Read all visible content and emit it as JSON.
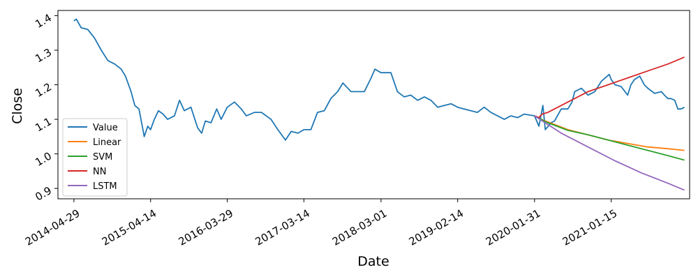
{
  "chart_data": {
    "type": "line",
    "xlabel": "Date",
    "ylabel": "Close",
    "x_ticks": [
      "2014-04-29",
      "2015-04-14",
      "2016-03-29",
      "2017-03-14",
      "2018-03-01",
      "2019-02-14",
      "2020-01-31",
      "2021-01-15"
    ],
    "y_ticks": [
      "0.9",
      "1.0",
      "1.1",
      "1.2",
      "1.3",
      "1.4"
    ],
    "xlim": [
      "2014-02-15",
      "2022-01-08"
    ],
    "ylim": [
      0.87,
      1.415
    ],
    "legend_position": "lower-left",
    "grid": false,
    "series": [
      {
        "name": "Value",
        "color": "#1f77b4",
        "points": [
          [
            "2014-04-29",
            1.385
          ],
          [
            "2014-05-10",
            1.39
          ],
          [
            "2014-06-01",
            1.365
          ],
          [
            "2014-07-01",
            1.36
          ],
          [
            "2014-08-01",
            1.335
          ],
          [
            "2014-09-01",
            1.3
          ],
          [
            "2014-10-01",
            1.27
          ],
          [
            "2014-11-01",
            1.26
          ],
          [
            "2014-12-01",
            1.245
          ],
          [
            "2014-12-20",
            1.225
          ],
          [
            "2015-01-15",
            1.18
          ],
          [
            "2015-02-01",
            1.14
          ],
          [
            "2015-02-20",
            1.13
          ],
          [
            "2015-03-10",
            1.07
          ],
          [
            "2015-03-16",
            1.05
          ],
          [
            "2015-04-01",
            1.08
          ],
          [
            "2015-04-14",
            1.07
          ],
          [
            "2015-05-01",
            1.1
          ],
          [
            "2015-05-20",
            1.125
          ],
          [
            "2015-06-10",
            1.115
          ],
          [
            "2015-07-01",
            1.1
          ],
          [
            "2015-08-01",
            1.11
          ],
          [
            "2015-08-24",
            1.155
          ],
          [
            "2015-09-15",
            1.125
          ],
          [
            "2015-10-15",
            1.135
          ],
          [
            "2015-11-15",
            1.075
          ],
          [
            "2015-12-03",
            1.06
          ],
          [
            "2015-12-20",
            1.095
          ],
          [
            "2016-01-15",
            1.09
          ],
          [
            "2016-02-10",
            1.13
          ],
          [
            "2016-03-01",
            1.1
          ],
          [
            "2016-03-29",
            1.135
          ],
          [
            "2016-05-01",
            1.15
          ],
          [
            "2016-06-01",
            1.13
          ],
          [
            "2016-06-24",
            1.11
          ],
          [
            "2016-08-01",
            1.12
          ],
          [
            "2016-09-01",
            1.12
          ],
          [
            "2016-10-15",
            1.1
          ],
          [
            "2016-11-15",
            1.07
          ],
          [
            "2016-12-20",
            1.04
          ],
          [
            "2017-01-15",
            1.065
          ],
          [
            "2017-02-15",
            1.06
          ],
          [
            "2017-03-14",
            1.07
          ],
          [
            "2017-04-15",
            1.07
          ],
          [
            "2017-05-15",
            1.12
          ],
          [
            "2017-06-15",
            1.125
          ],
          [
            "2017-07-15",
            1.16
          ],
          [
            "2017-08-15",
            1.18
          ],
          [
            "2017-09-08",
            1.205
          ],
          [
            "2017-10-15",
            1.18
          ],
          [
            "2017-11-15",
            1.18
          ],
          [
            "2017-12-15",
            1.18
          ],
          [
            "2018-01-15",
            1.22
          ],
          [
            "2018-02-01",
            1.245
          ],
          [
            "2018-03-01",
            1.235
          ],
          [
            "2018-04-15",
            1.235
          ],
          [
            "2018-05-15",
            1.18
          ],
          [
            "2018-06-15",
            1.165
          ],
          [
            "2018-07-15",
            1.17
          ],
          [
            "2018-08-15",
            1.155
          ],
          [
            "2018-09-15",
            1.165
          ],
          [
            "2018-10-15",
            1.155
          ],
          [
            "2018-11-15",
            1.135
          ],
          [
            "2018-12-15",
            1.14
          ],
          [
            "2019-01-15",
            1.145
          ],
          [
            "2019-02-14",
            1.135
          ],
          [
            "2019-03-15",
            1.13
          ],
          [
            "2019-04-15",
            1.125
          ],
          [
            "2019-05-15",
            1.12
          ],
          [
            "2019-06-15",
            1.135
          ],
          [
            "2019-07-15",
            1.12
          ],
          [
            "2019-08-15",
            1.11
          ],
          [
            "2019-09-15",
            1.1
          ],
          [
            "2019-10-15",
            1.11
          ],
          [
            "2019-11-15",
            1.105
          ],
          [
            "2019-12-15",
            1.115
          ],
          [
            "2020-01-31",
            1.11
          ],
          [
            "2020-02-20",
            1.08
          ],
          [
            "2020-03-09",
            1.14
          ],
          [
            "2020-03-20",
            1.07
          ],
          [
            "2020-04-15",
            1.09
          ],
          [
            "2020-05-01",
            1.095
          ],
          [
            "2020-06-01",
            1.13
          ],
          [
            "2020-07-01",
            1.13
          ],
          [
            "2020-07-20",
            1.15
          ],
          [
            "2020-08-01",
            1.18
          ],
          [
            "2020-09-01",
            1.19
          ],
          [
            "2020-10-01",
            1.17
          ],
          [
            "2020-11-01",
            1.18
          ],
          [
            "2020-12-01",
            1.21
          ],
          [
            "2021-01-06",
            1.23
          ],
          [
            "2021-01-15",
            1.215
          ],
          [
            "2021-02-01",
            1.2
          ],
          [
            "2021-03-01",
            1.195
          ],
          [
            "2021-03-31",
            1.17
          ],
          [
            "2021-04-15",
            1.2
          ],
          [
            "2021-05-01",
            1.215
          ],
          [
            "2021-05-25",
            1.225
          ],
          [
            "2021-06-15",
            1.2
          ],
          [
            "2021-07-01",
            1.19
          ],
          [
            "2021-08-01",
            1.175
          ],
          [
            "2021-09-01",
            1.18
          ],
          [
            "2021-09-15",
            1.17
          ],
          [
            "2021-10-01",
            1.16
          ],
          [
            "2021-10-15",
            1.16
          ],
          [
            "2021-11-01",
            1.155
          ],
          [
            "2021-11-15",
            1.13
          ],
          [
            "2021-12-01",
            1.13
          ],
          [
            "2021-12-15",
            1.135
          ]
        ]
      },
      {
        "name": "Linear",
        "color": "#ff7f0e",
        "points": [
          [
            "2020-01-31",
            1.11
          ],
          [
            "2020-03-01",
            1.1
          ],
          [
            "2020-05-01",
            1.085
          ],
          [
            "2020-07-01",
            1.07
          ],
          [
            "2020-10-01",
            1.055
          ],
          [
            "2021-01-01",
            1.04
          ],
          [
            "2021-04-01",
            1.03
          ],
          [
            "2021-07-01",
            1.02
          ],
          [
            "2021-10-01",
            1.015
          ],
          [
            "2021-12-15",
            1.01
          ]
        ]
      },
      {
        "name": "SVM",
        "color": "#2ca02c",
        "points": [
          [
            "2020-01-31",
            1.11
          ],
          [
            "2020-04-01",
            1.09
          ],
          [
            "2020-07-01",
            1.068
          ],
          [
            "2020-10-01",
            1.055
          ],
          [
            "2021-01-01",
            1.04
          ],
          [
            "2021-04-01",
            1.025
          ],
          [
            "2021-07-01",
            1.01
          ],
          [
            "2021-10-01",
            0.995
          ],
          [
            "2021-12-15",
            0.982
          ]
        ]
      },
      {
        "name": "NN",
        "color": "#d62728",
        "points": [
          [
            "2020-01-31",
            1.11
          ],
          [
            "2020-02-20",
            1.105
          ],
          [
            "2020-03-05",
            1.115
          ],
          [
            "2020-04-01",
            1.12
          ],
          [
            "2020-07-01",
            1.15
          ],
          [
            "2020-10-01",
            1.18
          ],
          [
            "2021-01-01",
            1.2
          ],
          [
            "2021-04-01",
            1.22
          ],
          [
            "2021-07-01",
            1.24
          ],
          [
            "2021-10-01",
            1.26
          ],
          [
            "2021-12-15",
            1.28
          ]
        ]
      },
      {
        "name": "LSTM",
        "color": "#9467bd",
        "points": [
          [
            "2020-01-31",
            1.11
          ],
          [
            "2020-06-01",
            1.06
          ],
          [
            "2020-10-01",
            1.02
          ],
          [
            "2021-02-01",
            0.98
          ],
          [
            "2021-06-01",
            0.945
          ],
          [
            "2021-10-01",
            0.915
          ],
          [
            "2021-12-15",
            0.895
          ]
        ]
      }
    ]
  }
}
